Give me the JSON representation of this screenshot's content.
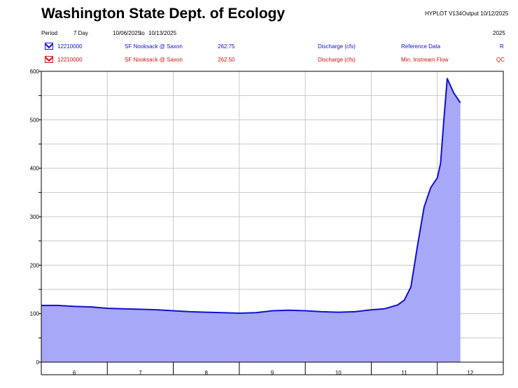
{
  "header": {
    "title": "Washington State Dept. of Ecology",
    "program": "HYPLOT V134",
    "output": "Output 10/12/2025",
    "period_label": "Period",
    "period_value": "7 Day",
    "date_from": "10/06/2025",
    "date_to_sep": "to",
    "date_to": "10/13/2025",
    "year": "2025"
  },
  "legend": [
    {
      "id": "12210000",
      "station": "SF Nooksack @ Saxon",
      "value": "262.75",
      "param": "Discharge (cfs)",
      "desc": "Reference Data",
      "code": "R",
      "color": "#1010d0"
    },
    {
      "id": "12210000",
      "station": "SF Nooksack @ Saxon",
      "value": "262.50",
      "param": "Discharge (cfs)",
      "desc": "Min. Instream Flow",
      "code": "QC",
      "color": "#d01010"
    }
  ],
  "chart_data": {
    "type": "area",
    "x_ticks": [
      "6",
      "7",
      "8",
      "9",
      "10",
      "11",
      "12"
    ],
    "y_ticks": [
      "0",
      "100",
      "200",
      "300",
      "400",
      "500",
      "600"
    ],
    "ylim": [
      0,
      600
    ],
    "xlim": [
      6,
      13
    ],
    "grid": true,
    "line_color": "#1010d0",
    "fill_color": "#a8a8f8",
    "x": [
      6.0,
      6.25,
      6.5,
      6.75,
      7.0,
      7.25,
      7.5,
      7.75,
      8.0,
      8.25,
      8.5,
      8.75,
      9.0,
      9.25,
      9.5,
      9.75,
      10.0,
      10.25,
      10.5,
      10.75,
      11.0,
      11.2,
      11.4,
      11.5,
      11.6,
      11.7,
      11.8,
      11.9,
      12.0,
      12.05,
      12.1,
      12.15,
      12.2,
      12.25,
      12.3,
      12.35
    ],
    "y": [
      117,
      117,
      115,
      114,
      111,
      110,
      109,
      108,
      106,
      104,
      103,
      102,
      101,
      102,
      106,
      107,
      106,
      104,
      103,
      104,
      108,
      110,
      118,
      128,
      155,
      240,
      320,
      360,
      380,
      410,
      500,
      585,
      570,
      555,
      545,
      535
    ]
  }
}
